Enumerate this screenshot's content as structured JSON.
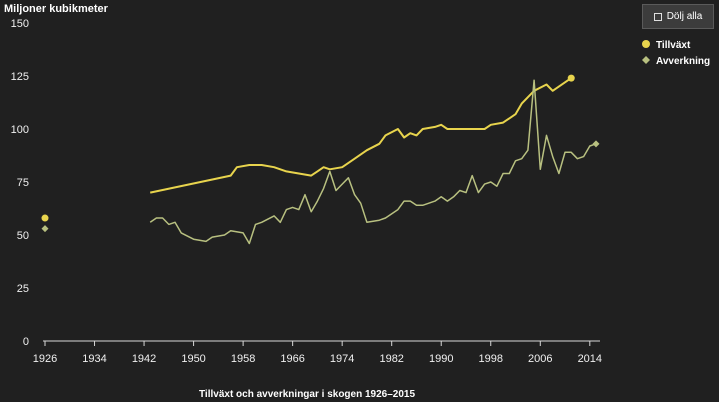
{
  "chart_data": {
    "type": "line",
    "title": "Tillväxt och avverkningar i skogen 1926–2015",
    "ylabel": "Miljoner kubikmeter",
    "xlabel": "",
    "ylim": [
      0,
      150
    ],
    "xlim": [
      1926,
      2015
    ],
    "x_ticks": [
      1926,
      1934,
      1942,
      1950,
      1958,
      1966,
      1974,
      1982,
      1990,
      1998,
      2006,
      2014
    ],
    "y_ticks": [
      0,
      25,
      50,
      75,
      100,
      125,
      150
    ],
    "grid": false,
    "legend_position": "top-right",
    "series": [
      {
        "name": "Tillväxt",
        "color": "#e8d44d",
        "marker": "circle",
        "points": [
          [
            1926,
            58
          ],
          [
            1943,
            70
          ],
          [
            1956,
            78
          ],
          [
            1957,
            82
          ],
          [
            1959,
            83
          ],
          [
            1961,
            83
          ],
          [
            1963,
            82
          ],
          [
            1965,
            80
          ],
          [
            1967,
            79
          ],
          [
            1969,
            78
          ],
          [
            1970,
            80
          ],
          [
            1971,
            82
          ],
          [
            1972,
            81
          ],
          [
            1974,
            82
          ],
          [
            1976,
            86
          ],
          [
            1978,
            90
          ],
          [
            1980,
            93
          ],
          [
            1981,
            97
          ],
          [
            1983,
            100
          ],
          [
            1984,
            96
          ],
          [
            1985,
            98
          ],
          [
            1986,
            97
          ],
          [
            1987,
            100
          ],
          [
            1989,
            101
          ],
          [
            1990,
            102
          ],
          [
            1991,
            100
          ],
          [
            1993,
            100
          ],
          [
            1995,
            100
          ],
          [
            1997,
            100
          ],
          [
            1998,
            102
          ],
          [
            2000,
            103
          ],
          [
            2002,
            107
          ],
          [
            2003,
            112
          ],
          [
            2005,
            118
          ],
          [
            2007,
            121
          ],
          [
            2008,
            118
          ],
          [
            2011,
            124
          ]
        ]
      },
      {
        "name": "Avverkning",
        "color": "#b8c080",
        "marker": "diamond",
        "points": [
          [
            1926,
            53
          ],
          [
            1943,
            56
          ],
          [
            1944,
            58
          ],
          [
            1945,
            58
          ],
          [
            1946,
            55
          ],
          [
            1947,
            56
          ],
          [
            1948,
            51
          ],
          [
            1950,
            48
          ],
          [
            1952,
            47
          ],
          [
            1953,
            49
          ],
          [
            1955,
            50
          ],
          [
            1956,
            52
          ],
          [
            1958,
            51
          ],
          [
            1959,
            46
          ],
          [
            1960,
            55
          ],
          [
            1961,
            56
          ],
          [
            1963,
            59
          ],
          [
            1964,
            56
          ],
          [
            1965,
            62
          ],
          [
            1966,
            63
          ],
          [
            1967,
            62
          ],
          [
            1968,
            69
          ],
          [
            1969,
            61
          ],
          [
            1970,
            66
          ],
          [
            1971,
            72
          ],
          [
            1972,
            80
          ],
          [
            1973,
            71
          ],
          [
            1974,
            74
          ],
          [
            1975,
            77
          ],
          [
            1976,
            69
          ],
          [
            1977,
            65
          ],
          [
            1978,
            56
          ],
          [
            1980,
            57
          ],
          [
            1981,
            58
          ],
          [
            1983,
            62
          ],
          [
            1984,
            66
          ],
          [
            1985,
            66
          ],
          [
            1986,
            64
          ],
          [
            1987,
            64
          ],
          [
            1989,
            66
          ],
          [
            1990,
            68
          ],
          [
            1991,
            66
          ],
          [
            1992,
            68
          ],
          [
            1993,
            71
          ],
          [
            1994,
            70
          ],
          [
            1995,
            78
          ],
          [
            1996,
            70
          ],
          [
            1997,
            74
          ],
          [
            1998,
            75
          ],
          [
            1999,
            73
          ],
          [
            2000,
            79
          ],
          [
            2001,
            79
          ],
          [
            2002,
            85
          ],
          [
            2003,
            86
          ],
          [
            2004,
            90
          ],
          [
            2005,
            123
          ],
          [
            2006,
            81
          ],
          [
            2007,
            97
          ],
          [
            2008,
            87
          ],
          [
            2009,
            79
          ],
          [
            2010,
            89
          ],
          [
            2011,
            89
          ],
          [
            2012,
            86
          ],
          [
            2013,
            87
          ],
          [
            2014,
            92
          ],
          [
            2015,
            93
          ]
        ]
      }
    ]
  },
  "legend": {
    "hide_all_label": "Dölj alla"
  }
}
